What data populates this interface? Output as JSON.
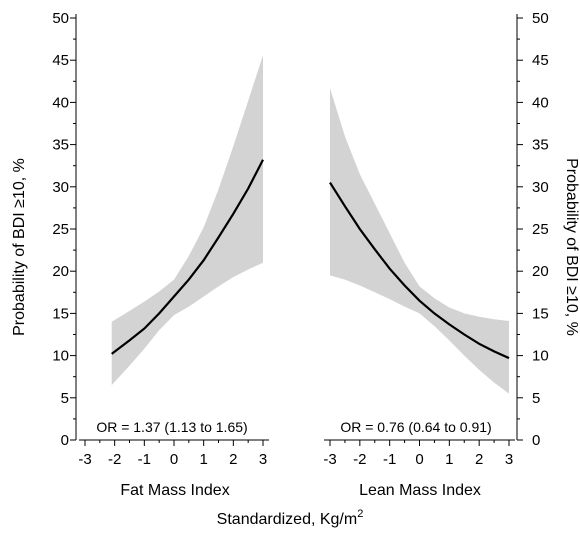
{
  "shared": {
    "ylabel_left": "Probability of BDI ≥10, %",
    "ylabel_right": "Probability of BDI ≥10, %",
    "xlabel_shared": "Standardized, Kg/m",
    "xlabel_superscript": "2",
    "y_ticks": [
      "0",
      "5",
      "10",
      "15",
      "20",
      "25",
      "30",
      "35",
      "40",
      "45",
      "50"
    ],
    "x_ticks": [
      "-3",
      "-2",
      "-1",
      "0",
      "1",
      "2",
      "3"
    ]
  },
  "chart_data": [
    {
      "type": "line",
      "panel": "left",
      "xlabel": "Fat Mass Index",
      "ylabel": "Probability of BDI ≥10, %",
      "annotation": "OR = 1.37 (1.13 to 1.65)",
      "xlim": [
        -3,
        3
      ],
      "ylim": [
        0,
        50
      ],
      "grid": false,
      "colors": {
        "line": "#000000",
        "band": "#d3d3d3"
      },
      "x": [
        -2.1,
        -1.5,
        -1.0,
        -0.5,
        0.0,
        0.5,
        1.0,
        1.5,
        2.0,
        2.5,
        3.0
      ],
      "y": [
        10.2,
        11.8,
        13.2,
        15.0,
        17.0,
        19.0,
        21.3,
        24.0,
        26.8,
        29.8,
        33.2
      ],
      "ci_lower": [
        6.5,
        8.8,
        10.8,
        13.0,
        14.8,
        15.8,
        17.0,
        18.2,
        19.3,
        20.2,
        21.0
      ],
      "ci_upper": [
        14.0,
        15.3,
        16.4,
        17.6,
        19.0,
        21.8,
        25.2,
        29.7,
        34.8,
        40.2,
        45.6
      ]
    },
    {
      "type": "line",
      "panel": "right",
      "xlabel": "Lean Mass Index",
      "ylabel": "Probability of BDI ≥10, %",
      "annotation": "OR = 0.76 (0.64 to 0.91)",
      "xlim": [
        -3,
        3
      ],
      "ylim": [
        0,
        50
      ],
      "grid": false,
      "colors": {
        "line": "#000000",
        "band": "#d3d3d3"
      },
      "x": [
        -3.0,
        -2.5,
        -2.0,
        -1.5,
        -1.0,
        -0.5,
        0.0,
        0.5,
        1.0,
        1.5,
        2.0,
        2.5,
        3.0
      ],
      "y": [
        30.5,
        27.7,
        25.0,
        22.6,
        20.3,
        18.3,
        16.5,
        15.0,
        13.7,
        12.5,
        11.4,
        10.5,
        9.7
      ],
      "ci_lower": [
        19.5,
        19.0,
        18.3,
        17.5,
        16.7,
        15.8,
        15.0,
        13.5,
        11.8,
        10.0,
        8.3,
        6.8,
        5.5
      ],
      "ci_upper": [
        41.7,
        36.0,
        31.5,
        28.0,
        24.5,
        21.0,
        18.2,
        16.8,
        15.7,
        15.0,
        14.6,
        14.3,
        14.1
      ]
    }
  ]
}
